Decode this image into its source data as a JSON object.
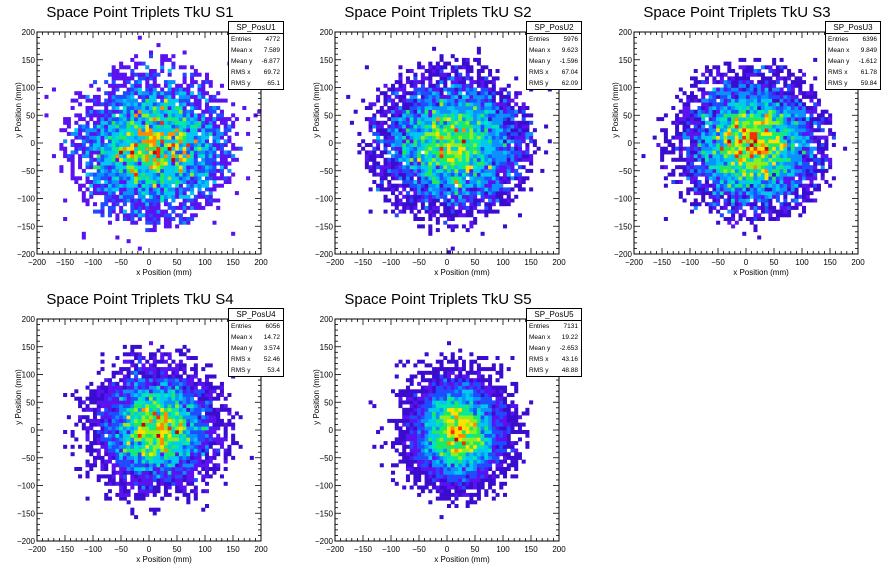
{
  "chart_data": [
    {
      "type": "heatmap",
      "title": "Space Point Triplets TkU S1",
      "xlabel": "x Position (mm)",
      "ylabel": "y Position (mm)",
      "xlim": [
        -200,
        200
      ],
      "ylim": [
        -200,
        200
      ],
      "xticks": [
        "−200",
        "−150",
        "−100",
        "−50",
        "0",
        "50",
        "100",
        "150",
        "200"
      ],
      "yticks": [
        "−200",
        "−150",
        "−100",
        "−50",
        "0",
        "50",
        "100",
        "150",
        "200"
      ],
      "stats": {
        "name": "SP_PosU1",
        "rows": [
          [
            "Entries",
            "4772"
          ],
          [
            "Mean x",
            "7.589"
          ],
          [
            "Mean y",
            "-6.877"
          ],
          [
            "RMS x",
            "69.72"
          ],
          [
            "RMS y",
            "65.1"
          ]
        ]
      },
      "distribution": {
        "mean_x": 7.589,
        "mean_y": -6.877,
        "rms_x": 69.72,
        "rms_y": 65.1,
        "entries": 4772
      }
    },
    {
      "type": "heatmap",
      "title": "Space Point Triplets TkU S2",
      "xlabel": "x Position (mm)",
      "ylabel": "y Position (mm)",
      "xlim": [
        -200,
        200
      ],
      "ylim": [
        -200,
        200
      ],
      "xticks": [
        "−200",
        "−150",
        "−100",
        "−50",
        "0",
        "50",
        "100",
        "150",
        "200"
      ],
      "yticks": [
        "−200",
        "−150",
        "−100",
        "−50",
        "0",
        "50",
        "100",
        "150",
        "200"
      ],
      "stats": {
        "name": "SP_PosU2",
        "rows": [
          [
            "Entries",
            "5976"
          ],
          [
            "Mean x",
            "9.623"
          ],
          [
            "Mean y",
            "-1.596"
          ],
          [
            "RMS x",
            "67.04"
          ],
          [
            "RMS y",
            "62.09"
          ]
        ]
      },
      "distribution": {
        "mean_x": 9.623,
        "mean_y": -1.596,
        "rms_x": 67.04,
        "rms_y": 62.09,
        "entries": 5976
      }
    },
    {
      "type": "heatmap",
      "title": "Space Point Triplets TkU S3",
      "xlabel": "x Position (mm)",
      "ylabel": "y Position (mm)",
      "xlim": [
        -200,
        200
      ],
      "ylim": [
        -200,
        200
      ],
      "xticks": [
        "−200",
        "−150",
        "−100",
        "−50",
        "0",
        "50",
        "100",
        "150",
        "200"
      ],
      "yticks": [
        "−200",
        "−150",
        "−100",
        "−50",
        "0",
        "50",
        "100",
        "150",
        "200"
      ],
      "stats": {
        "name": "SP_PosU3",
        "rows": [
          [
            "Entries",
            "6396"
          ],
          [
            "Mean x",
            "9.849"
          ],
          [
            "Mean y",
            "-1.612"
          ],
          [
            "RMS x",
            "61.78"
          ],
          [
            "RMS y",
            "59.84"
          ]
        ]
      },
      "distribution": {
        "mean_x": 9.849,
        "mean_y": -1.612,
        "rms_x": 61.78,
        "rms_y": 59.84,
        "entries": 6396
      }
    },
    {
      "type": "heatmap",
      "title": "Space Point Triplets TkU S4",
      "xlabel": "x Position (mm)",
      "ylabel": "y Position (mm)",
      "xlim": [
        -200,
        200
      ],
      "ylim": [
        -200,
        200
      ],
      "xticks": [
        "−200",
        "−150",
        "−100",
        "−50",
        "0",
        "50",
        "100",
        "150",
        "200"
      ],
      "yticks": [
        "−200",
        "−150",
        "−100",
        "−50",
        "0",
        "50",
        "100",
        "150",
        "200"
      ],
      "stats": {
        "name": "SP_PosU4",
        "rows": [
          [
            "Entries",
            "6056"
          ],
          [
            "Mean x",
            "14.72"
          ],
          [
            "Mean y",
            "3.574"
          ],
          [
            "RMS x",
            "52.46"
          ],
          [
            "RMS y",
            "53.4"
          ]
        ]
      },
      "distribution": {
        "mean_x": 14.72,
        "mean_y": 3.574,
        "rms_x": 52.46,
        "rms_y": 53.4,
        "entries": 6056
      }
    },
    {
      "type": "heatmap",
      "title": "Space Point Triplets TkU S5",
      "xlabel": "x Position (mm)",
      "ylabel": "y Position (mm)",
      "xlim": [
        -200,
        200
      ],
      "ylim": [
        -200,
        200
      ],
      "xticks": [
        "−200",
        "−150",
        "−100",
        "−50",
        "0",
        "50",
        "100",
        "150",
        "200"
      ],
      "yticks": [
        "−200",
        "−150",
        "−100",
        "−50",
        "0",
        "50",
        "100",
        "150",
        "200"
      ],
      "stats": {
        "name": "SP_PosU5",
        "rows": [
          [
            "Entries",
            "7131"
          ],
          [
            "Mean x",
            "19.22"
          ],
          [
            "Mean y",
            "-2.653"
          ],
          [
            "RMS x",
            "43.16"
          ],
          [
            "RMS y",
            "48.88"
          ]
        ]
      },
      "distribution": {
        "mean_x": 19.22,
        "mean_y": -2.653,
        "rms_x": 43.16,
        "rms_y": 48.88,
        "entries": 7131
      }
    }
  ],
  "palette": [
    "#3a0ccf",
    "#5a12f0",
    "#1f4cff",
    "#0a90ff",
    "#00c8ef",
    "#00e8b0",
    "#20e860",
    "#8af020",
    "#ffe000",
    "#ff8a00",
    "#ff2a00",
    "#d00000"
  ]
}
